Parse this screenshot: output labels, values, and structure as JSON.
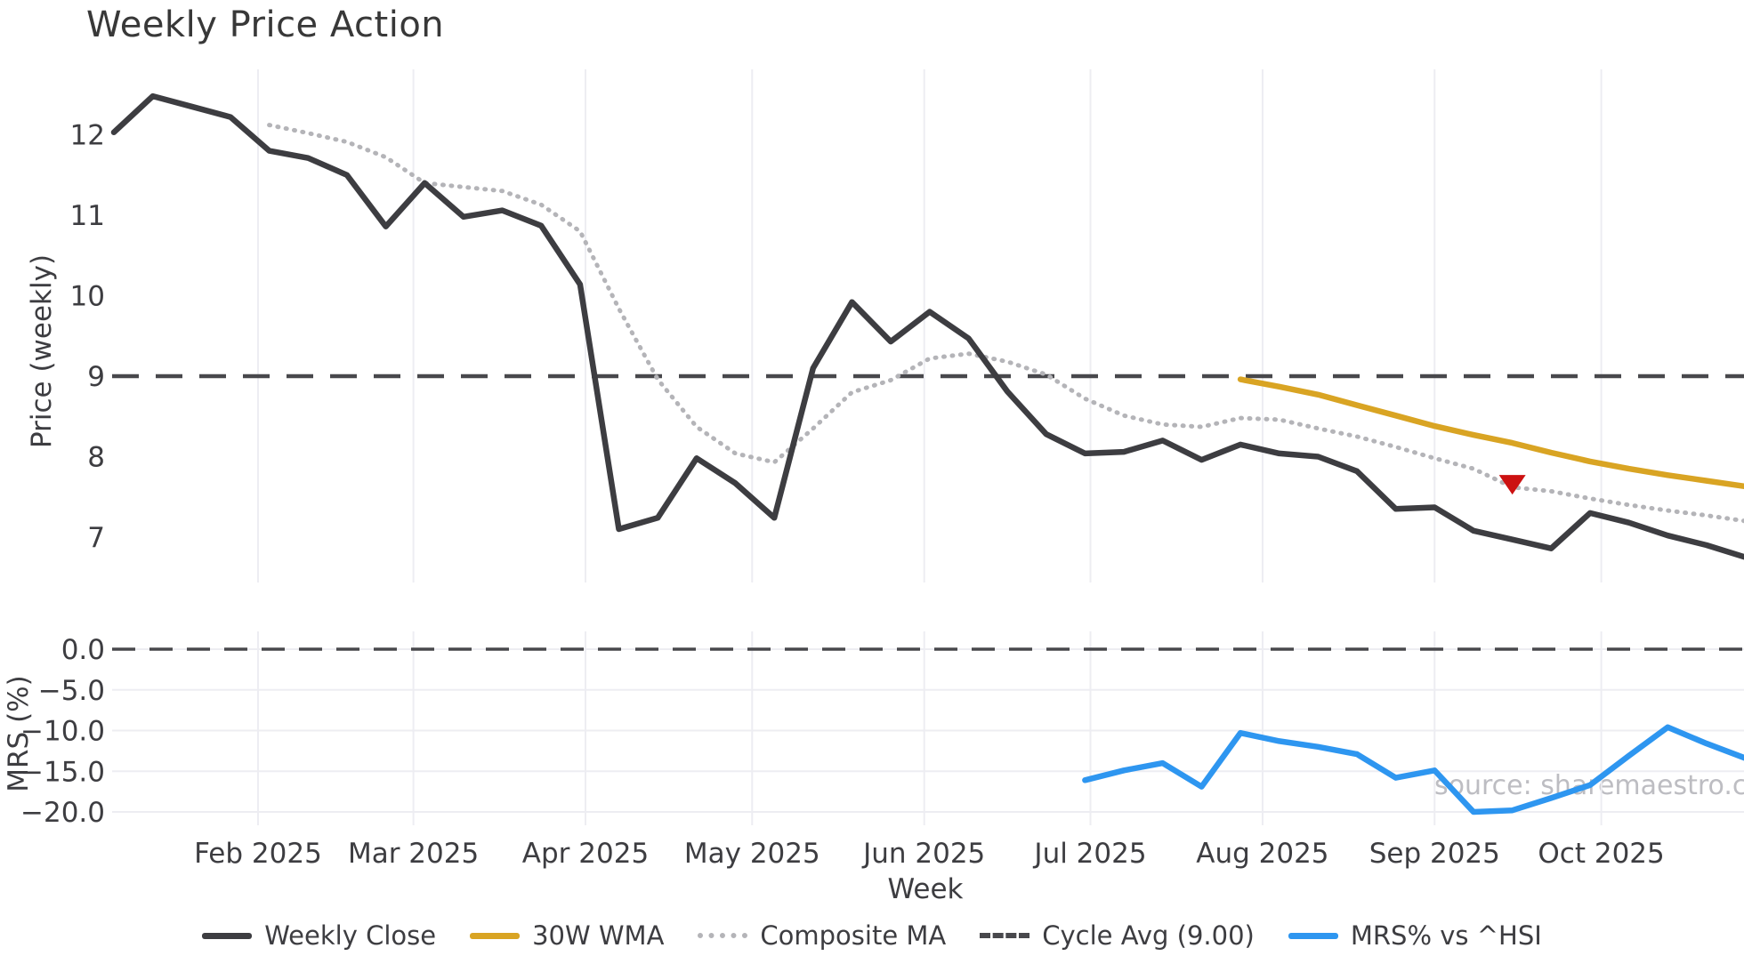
{
  "title": "Weekly Price Action",
  "watermark": "source: sharemaestro.com",
  "legend": [
    {
      "label": "Weekly Close",
      "color": "#3d3d41",
      "style": "solid"
    },
    {
      "label": "30W WMA",
      "color": "#d9a423",
      "style": "solid"
    },
    {
      "label": "Composite MA",
      "color": "#b4b4b8",
      "style": "dotted"
    },
    {
      "label": "Cycle Avg (9.00)",
      "color": "#48484c",
      "style": "dashed"
    },
    {
      "label": "MRS% vs ^HSI",
      "color": "#2e96f0",
      "style": "solid"
    }
  ],
  "colors": {
    "weekly_close": "#3d3d41",
    "wma_30w": "#d9a423",
    "composite_ma": "#b4b4b8",
    "cycle_avg": "#48484c",
    "mrs": "#2e96f0",
    "signal_marker": "#cc1111",
    "gridline": "#ededf2",
    "watermark": "#bdbdc2"
  },
  "chart_data": [
    {
      "type": "line",
      "panel": "price",
      "title": "Weekly Price Action",
      "ylabel": "Price (weekly)",
      "ylim": [
        6.44,
        12.79
      ],
      "grid": "vertical-months-only",
      "legend_position": "bottom-center-below-figure",
      "x_dates": [
        "2025-01-06",
        "2025-01-13",
        "2025-01-20",
        "2025-01-27",
        "2025-02-03",
        "2025-02-10",
        "2025-02-17",
        "2025-02-24",
        "2025-03-03",
        "2025-03-10",
        "2025-03-17",
        "2025-03-24",
        "2025-03-31",
        "2025-04-07",
        "2025-04-14",
        "2025-04-21",
        "2025-04-28",
        "2025-05-05",
        "2025-05-12",
        "2025-05-19",
        "2025-05-26",
        "2025-06-02",
        "2025-06-09",
        "2025-06-16",
        "2025-06-23",
        "2025-06-30",
        "2025-07-07",
        "2025-07-14",
        "2025-07-21",
        "2025-07-28",
        "2025-08-04",
        "2025-08-11",
        "2025-08-18",
        "2025-08-25",
        "2025-09-01",
        "2025-09-08",
        "2025-09-15",
        "2025-09-22",
        "2025-09-29",
        "2025-10-06",
        "2025-10-13",
        "2025-10-20",
        "2025-10-27"
      ],
      "yticks": [
        {
          "label": "12",
          "value": 12
        },
        {
          "label": "11",
          "value": 11
        },
        {
          "label": "10",
          "value": 10
        },
        {
          "label": "9",
          "value": 9
        },
        {
          "label": "8",
          "value": 8
        },
        {
          "label": "7",
          "value": 7
        }
      ],
      "month_ticks": [
        {
          "label": "Feb 2025",
          "week_pos": 3.71
        },
        {
          "label": "Mar 2025",
          "week_pos": 7.71
        },
        {
          "label": "Apr 2025",
          "week_pos": 12.14
        },
        {
          "label": "May 2025",
          "week_pos": 16.43
        },
        {
          "label": "Jun 2025",
          "week_pos": 20.86
        },
        {
          "label": "Jul 2025",
          "week_pos": 25.14
        },
        {
          "label": "Aug 2025",
          "week_pos": 29.57
        },
        {
          "label": "Sep 2025",
          "week_pos": 34.0
        },
        {
          "label": "Oct 2025",
          "week_pos": 38.29
        }
      ],
      "series": [
        {
          "name": "Weekly Close",
          "color": "#3d3d41",
          "style": "solid",
          "values": [
            12.03,
            12.48,
            12.35,
            12.22,
            11.8,
            11.71,
            11.5,
            10.86,
            11.4,
            10.98,
            11.06,
            10.87,
            10.14,
            7.1,
            7.24,
            7.98,
            7.67,
            7.24,
            9.1,
            9.92,
            9.43,
            9.8,
            9.47,
            8.81,
            8.28,
            8.04,
            8.06,
            8.2,
            7.96,
            8.15,
            8.04,
            8.0,
            7.82,
            7.35,
            7.37,
            7.08,
            6.97,
            6.86,
            7.3,
            7.18,
            7.02,
            6.9,
            6.75
          ]
        },
        {
          "name": "30W WMA",
          "color": "#d9a423",
          "style": "solid",
          "values": [
            null,
            null,
            null,
            null,
            null,
            null,
            null,
            null,
            null,
            null,
            null,
            null,
            null,
            null,
            null,
            null,
            null,
            null,
            null,
            null,
            null,
            null,
            null,
            null,
            null,
            null,
            null,
            null,
            null,
            8.96,
            8.87,
            8.77,
            8.64,
            8.51,
            8.38,
            8.27,
            8.17,
            8.05,
            7.94,
            7.85,
            7.77,
            7.7,
            7.63
          ]
        },
        {
          "name": "Composite MA",
          "color": "#b4b4b8",
          "style": "dotted",
          "values": [
            null,
            null,
            null,
            null,
            12.12,
            12.02,
            11.91,
            11.72,
            11.4,
            11.35,
            11.3,
            11.13,
            10.8,
            9.84,
            8.96,
            8.37,
            8.04,
            7.93,
            8.35,
            8.8,
            8.95,
            9.22,
            9.28,
            9.18,
            9.02,
            8.72,
            8.51,
            8.4,
            8.37,
            8.48,
            8.46,
            8.35,
            8.25,
            8.12,
            7.98,
            7.85,
            7.62,
            7.57,
            7.48,
            7.4,
            7.33,
            7.27,
            7.2
          ]
        },
        {
          "name": "Cycle Avg (9.00)",
          "color": "#48484c",
          "style": "dashed",
          "constant_value": 9.0
        }
      ],
      "markers": [
        {
          "name": "sell-signal",
          "shape": "triangle-down",
          "color": "#cc1111",
          "week_index": 36,
          "date": "2025-09-15",
          "price": 7.65
        }
      ]
    },
    {
      "type": "line",
      "panel": "mrs",
      "ylabel": "MRS (%)",
      "xlabel": "Week",
      "ylim": [
        -21.8,
        2.0
      ],
      "grid": "horizontal-and-vertical",
      "zero_line_style": "dashed",
      "yticks": [
        {
          "label": "0.0",
          "value": 0
        },
        {
          "label": "−5.0",
          "value": -5
        },
        {
          "label": "−10.0",
          "value": -10
        },
        {
          "label": "−15.0",
          "value": -15
        },
        {
          "label": "−20.0",
          "value": -20
        }
      ],
      "series": [
        {
          "name": "MRS% vs ^HSI",
          "color": "#2e96f0",
          "style": "solid",
          "values": [
            null,
            null,
            null,
            null,
            null,
            null,
            null,
            null,
            null,
            null,
            null,
            null,
            null,
            null,
            null,
            null,
            null,
            null,
            null,
            null,
            null,
            null,
            null,
            null,
            null,
            -16.1,
            -14.9,
            -14.0,
            -16.9,
            -10.3,
            -11.3,
            -12.0,
            -12.9,
            -15.8,
            -14.9,
            -20.0,
            -19.8,
            -18.3,
            -16.7,
            -13.1,
            -9.6,
            -11.6,
            -13.4
          ]
        }
      ]
    }
  ]
}
